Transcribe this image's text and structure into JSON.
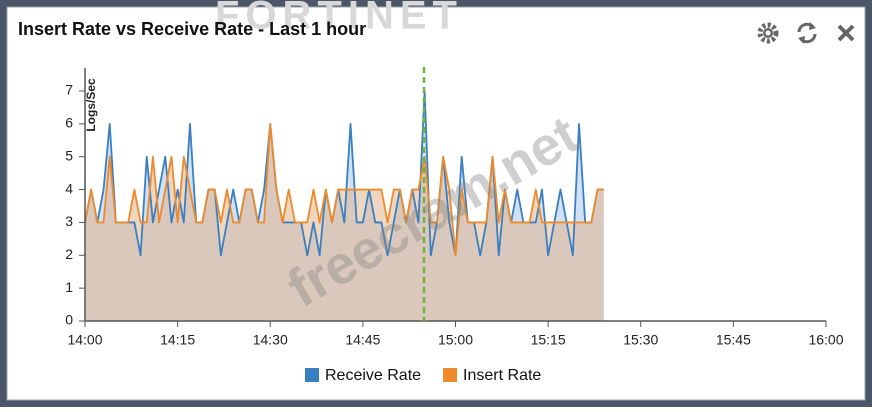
{
  "logo": "FORTINET",
  "watermark": "freecram.net",
  "chart_data": {
    "type": "area-line",
    "title": "Insert Rate vs Receive Rate - Last 1 hour",
    "y_label": "Logs/Sec",
    "x": [
      "14:00",
      "14:01",
      "14:02",
      "14:03",
      "14:04",
      "14:05",
      "14:06",
      "14:07",
      "14:08",
      "14:09",
      "14:10",
      "14:11",
      "14:12",
      "14:13",
      "14:14",
      "14:15",
      "14:16",
      "14:17",
      "14:18",
      "14:19",
      "14:20",
      "14:21",
      "14:22",
      "14:23",
      "14:24",
      "14:25",
      "14:26",
      "14:27",
      "14:28",
      "14:29",
      "14:30",
      "14:31",
      "14:32",
      "14:33",
      "14:34",
      "14:35",
      "14:36",
      "14:37",
      "14:38",
      "14:39",
      "14:40",
      "14:41",
      "14:42",
      "14:43",
      "14:44",
      "14:45",
      "14:46",
      "14:47",
      "14:48",
      "14:49",
      "14:50",
      "14:51",
      "14:52",
      "14:53",
      "14:54",
      "14:55",
      "14:56",
      "14:57",
      "14:58",
      "14:59",
      "15:00",
      "15:01",
      "15:02",
      "15:03",
      "15:04",
      "15:05",
      "15:06",
      "15:07",
      "15:08",
      "15:09",
      "15:10",
      "15:11",
      "15:12",
      "15:13",
      "15:14",
      "15:15",
      "15:16",
      "15:17",
      "15:18",
      "15:19",
      "15:20",
      "15:21",
      "15:22",
      "15:23",
      "15:24"
    ],
    "series": [
      {
        "name": "Receive Rate",
        "color": "#3a7fc1",
        "fill": "#a9c8ea",
        "values": [
          3,
          4,
          3,
          4,
          6,
          3,
          3,
          3,
          3,
          2,
          5,
          3,
          4,
          5,
          3,
          4,
          3,
          6,
          3,
          3,
          4,
          4,
          2,
          3,
          4,
          3,
          4,
          4,
          3,
          4,
          6,
          4,
          3,
          3,
          3,
          3,
          2,
          3,
          2,
          4,
          3,
          4,
          3,
          6,
          3,
          3,
          4,
          3,
          3,
          2,
          3,
          4,
          3,
          4,
          3,
          7,
          2,
          3,
          5,
          3,
          2,
          5,
          3,
          3,
          2,
          3,
          5,
          2,
          4,
          3,
          4,
          3,
          3,
          3,
          4,
          2,
          3,
          4,
          3,
          2,
          6,
          3,
          3,
          4,
          4
        ]
      },
      {
        "name": "Insert Rate",
        "color": "#ef8a2a",
        "fill": "#e0b48c",
        "values": [
          3,
          4,
          3,
          3,
          5,
          3,
          3,
          3,
          4,
          3,
          3,
          5,
          3,
          4,
          5,
          3,
          5,
          4,
          3,
          3,
          4,
          4,
          3,
          4,
          3,
          3,
          4,
          4,
          3,
          3,
          6,
          4,
          3,
          4,
          3,
          3,
          3,
          4,
          3,
          4,
          3,
          4,
          4,
          4,
          4,
          4,
          4,
          4,
          4,
          3,
          4,
          4,
          3,
          4,
          4,
          5,
          3,
          3,
          5,
          4,
          2,
          4,
          3,
          3,
          3,
          3,
          5,
          3,
          4,
          3,
          3,
          3,
          3,
          4,
          3,
          3,
          3,
          3,
          3,
          3,
          3,
          3,
          3,
          4,
          4
        ]
      }
    ],
    "xlim": [
      "14:00",
      "16:00"
    ],
    "xticks": [
      "14:00",
      "14:15",
      "14:30",
      "14:45",
      "15:00",
      "15:15",
      "15:30",
      "15:45",
      "16:00"
    ],
    "ylim": [
      0,
      7.7
    ],
    "yticks": [
      0,
      1,
      2,
      3,
      4,
      5,
      6,
      7
    ],
    "legend": "bottom"
  }
}
